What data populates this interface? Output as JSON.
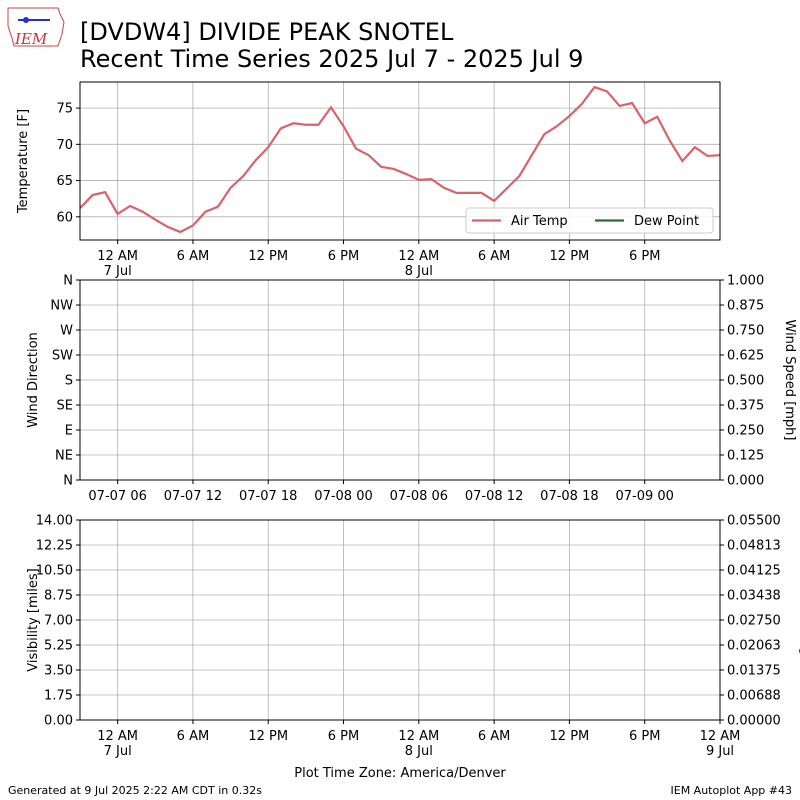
{
  "title": "[DVDW4] DIVIDE PEAK SNOTEL",
  "subtitle": "Recent Time Series 2025 Jul 7 - 2025 Jul 9",
  "logo_text": "IEM",
  "footer_left": "Generated at 9 Jul 2025 2:22 AM CDT in 0.32s",
  "footer_right": "IEM Autoplot App #43",
  "chart_data": [
    {
      "type": "line",
      "ylabel": "Temperature [F]",
      "grid": true,
      "legend": "lower right",
      "xlim": [
        "07-06 21:00",
        "07-09 00:00"
      ],
      "xticks": [
        {
          "value": "07-07 00:00",
          "label": "12 AM\n7 Jul"
        },
        {
          "value": "07-07 06:00",
          "label": "6 AM"
        },
        {
          "value": "07-07 12:00",
          "label": "12 PM"
        },
        {
          "value": "07-07 18:00",
          "label": "6 PM"
        },
        {
          "value": "07-08 00:00",
          "label": "12 AM\n8 Jul"
        },
        {
          "value": "07-08 06:00",
          "label": "6 AM"
        },
        {
          "value": "07-08 12:00",
          "label": "12 PM"
        },
        {
          "value": "07-08 18:00",
          "label": "6 PM"
        }
      ],
      "ylim": [
        56.8,
        78.6
      ],
      "yticks": [
        60,
        65,
        70,
        75
      ],
      "x": [
        "07-06 21:00",
        "07-06 22:00",
        "07-06 23:00",
        "07-07 00:00",
        "07-07 01:00",
        "07-07 02:00",
        "07-07 03:00",
        "07-07 04:00",
        "07-07 05:00",
        "07-07 06:00",
        "07-07 07:00",
        "07-07 08:00",
        "07-07 09:00",
        "07-07 10:00",
        "07-07 11:00",
        "07-07 12:00",
        "07-07 13:00",
        "07-07 14:00",
        "07-07 15:00",
        "07-07 16:00",
        "07-07 17:00",
        "07-07 18:00",
        "07-07 19:00",
        "07-07 20:00",
        "07-07 21:00",
        "07-07 22:00",
        "07-07 23:00",
        "07-08 00:00",
        "07-08 01:00",
        "07-08 02:00",
        "07-08 03:00",
        "07-08 04:00",
        "07-08 05:00",
        "07-08 06:00",
        "07-08 07:00",
        "07-08 08:00",
        "07-08 09:00",
        "07-08 10:00",
        "07-08 11:00",
        "07-08 12:00",
        "07-08 13:00",
        "07-08 14:00",
        "07-08 15:00",
        "07-08 16:00",
        "07-08 17:00",
        "07-08 18:00",
        "07-08 19:00",
        "07-08 20:00",
        "07-08 21:00",
        "07-08 22:00",
        "07-08 23:00",
        "07-09 00:00"
      ],
      "series": [
        {
          "name": "Air Temp",
          "color": "#d9626b",
          "values": [
            61.2,
            63.0,
            63.4,
            60.4,
            61.5,
            60.7,
            59.6,
            58.6,
            57.9,
            58.8,
            60.7,
            61.4,
            64.0,
            65.6,
            67.8,
            69.6,
            72.2,
            72.9,
            72.7,
            72.7,
            75.1,
            72.5,
            69.4,
            68.5,
            66.9,
            66.6,
            65.9,
            65.1,
            65.2,
            64.0,
            63.3,
            63.3,
            63.3,
            62.2,
            63.9,
            65.6,
            68.5,
            71.4,
            72.5,
            73.9,
            75.6,
            77.9,
            77.3,
            75.3,
            75.7,
            72.9,
            73.8,
            70.5,
            67.7,
            69.6,
            68.4,
            68.5
          ]
        },
        {
          "name": "Dew Point",
          "color": "#2e6b34",
          "values": [
            null,
            null,
            null,
            null,
            null,
            null,
            null,
            null,
            null,
            null,
            null,
            null,
            null,
            null,
            null,
            null,
            null,
            null,
            null,
            null,
            null,
            null,
            null,
            null,
            null,
            null,
            null,
            null,
            null,
            null,
            null,
            null,
            null,
            null,
            null,
            null,
            null,
            null,
            null,
            null,
            null,
            null,
            null,
            null,
            null,
            null,
            null,
            null,
            null,
            null,
            null,
            null
          ]
        }
      ]
    },
    {
      "type": "line",
      "ylabel": "Wind Direction",
      "y2label": "Wind Speed [mph]",
      "grid": true,
      "xlim": [
        "07-07 03:00",
        "07-09 06:00"
      ],
      "xticks": [
        {
          "value": "07-07 06:00",
          "label": "07-07 06"
        },
        {
          "value": "07-07 12:00",
          "label": "07-07 12"
        },
        {
          "value": "07-07 18:00",
          "label": "07-07 18"
        },
        {
          "value": "07-08 00:00",
          "label": "07-08 00"
        },
        {
          "value": "07-08 06:00",
          "label": "07-08 06"
        },
        {
          "value": "07-08 12:00",
          "label": "07-08 12"
        },
        {
          "value": "07-08 18:00",
          "label": "07-08 18"
        },
        {
          "value": "07-09 00:00",
          "label": "07-09 00"
        }
      ],
      "ylim": [
        0,
        360
      ],
      "yticks": [
        {
          "value": 0,
          "label": "N"
        },
        {
          "value": 45,
          "label": "NE"
        },
        {
          "value": 90,
          "label": "E"
        },
        {
          "value": 135,
          "label": "SE"
        },
        {
          "value": 180,
          "label": "S"
        },
        {
          "value": 225,
          "label": "SW"
        },
        {
          "value": 270,
          "label": "W"
        },
        {
          "value": 315,
          "label": "NW"
        },
        {
          "value": 360,
          "label": "N"
        }
      ],
      "y2lim": [
        0,
        1
      ],
      "y2ticks": [
        {
          "value": 0,
          "label": "0.000"
        },
        {
          "value": 0.125,
          "label": "0.125"
        },
        {
          "value": 0.25,
          "label": "0.250"
        },
        {
          "value": 0.375,
          "label": "0.375"
        },
        {
          "value": 0.5,
          "label": "0.500"
        },
        {
          "value": 0.625,
          "label": "0.625"
        },
        {
          "value": 0.75,
          "label": "0.750"
        },
        {
          "value": 0.875,
          "label": "0.875"
        },
        {
          "value": 1,
          "label": "1.000"
        }
      ]
    },
    {
      "type": "line",
      "ylabel": "Visibility [miles]",
      "y2label": "Overcast Ceiling [k ft]",
      "y2label_color": "green",
      "xlabel": "Plot Time Zone: America/Denver",
      "grid": true,
      "xlim": [
        "07-06 21:00",
        "07-09 00:00"
      ],
      "xticks": [
        {
          "value": "07-07 00:00",
          "label": "12 AM\n7 Jul"
        },
        {
          "value": "07-07 06:00",
          "label": "6 AM"
        },
        {
          "value": "07-07 12:00",
          "label": "12 PM"
        },
        {
          "value": "07-07 18:00",
          "label": "6 PM"
        },
        {
          "value": "07-08 00:00",
          "label": "12 AM\n8 Jul"
        },
        {
          "value": "07-08 06:00",
          "label": "6 AM"
        },
        {
          "value": "07-08 12:00",
          "label": "12 PM"
        },
        {
          "value": "07-08 18:00",
          "label": "6 PM"
        },
        {
          "value": "07-09 00:00",
          "label": "12 AM\n9 Jul"
        }
      ],
      "ylim": [
        0,
        14
      ],
      "yticks": [
        {
          "value": 0,
          "label": "0.00"
        },
        {
          "value": 1.75,
          "label": "1.75"
        },
        {
          "value": 3.5,
          "label": "3.50"
        },
        {
          "value": 5.25,
          "label": "5.25"
        },
        {
          "value": 7,
          "label": "7.00"
        },
        {
          "value": 8.75,
          "label": "8.75"
        },
        {
          "value": 10.5,
          "label": "10.50"
        },
        {
          "value": 12.25,
          "label": "12.25"
        },
        {
          "value": 14,
          "label": "14.00"
        }
      ],
      "y2lim": [
        0,
        0.055
      ],
      "y2ticks": [
        {
          "value": 0,
          "label": "0.00000"
        },
        {
          "value": 0.006875,
          "label": "0.00688"
        },
        {
          "value": 0.01375,
          "label": "0.01375"
        },
        {
          "value": 0.020625,
          "label": "0.02063"
        },
        {
          "value": 0.0275,
          "label": "0.02750"
        },
        {
          "value": 0.034375,
          "label": "0.03438"
        },
        {
          "value": 0.04125,
          "label": "0.04125"
        },
        {
          "value": 0.048125,
          "label": "0.04813"
        },
        {
          "value": 0.055,
          "label": "0.05500"
        }
      ]
    }
  ]
}
